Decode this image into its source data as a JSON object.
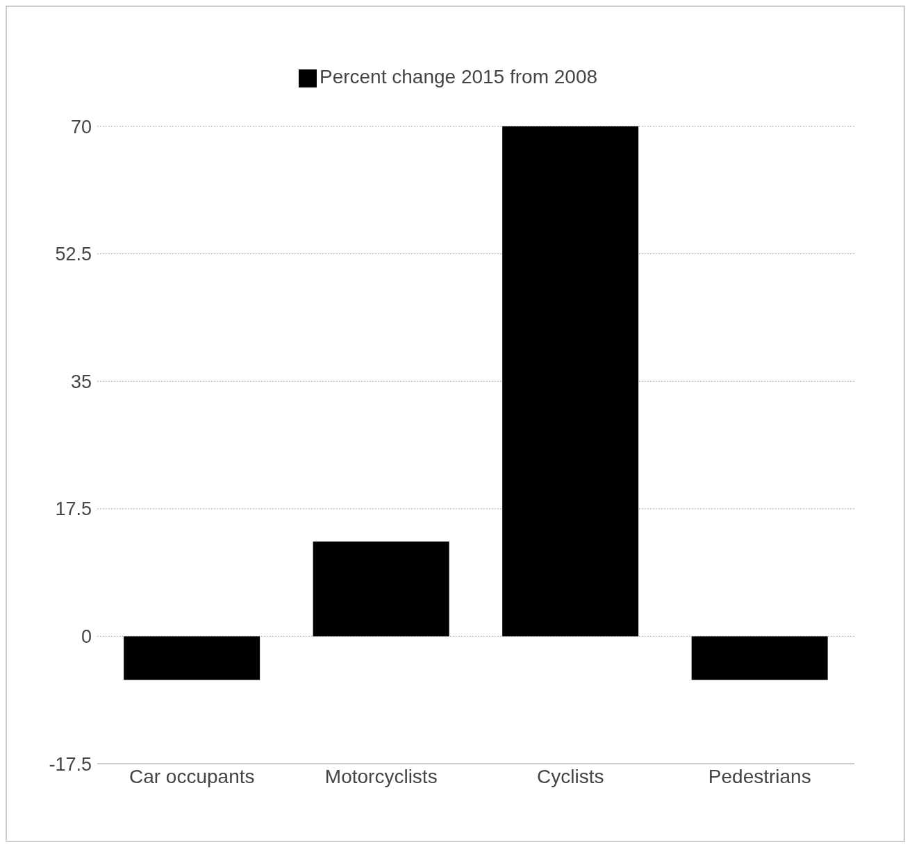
{
  "chart_data": {
    "type": "bar",
    "categories": [
      "Car occupants",
      "Motorcyclists",
      "Cyclists",
      "Pedestrians"
    ],
    "series": [
      {
        "name": "Percent change 2015 from 2008",
        "color": "#000000",
        "values": [
          -6,
          13,
          70,
          -6
        ]
      }
    ],
    "ylim": [
      -17.5,
      70
    ],
    "yticks": [
      -17.5,
      0,
      17.5,
      35,
      52.5,
      70
    ],
    "grid": "y",
    "legend": "top"
  }
}
